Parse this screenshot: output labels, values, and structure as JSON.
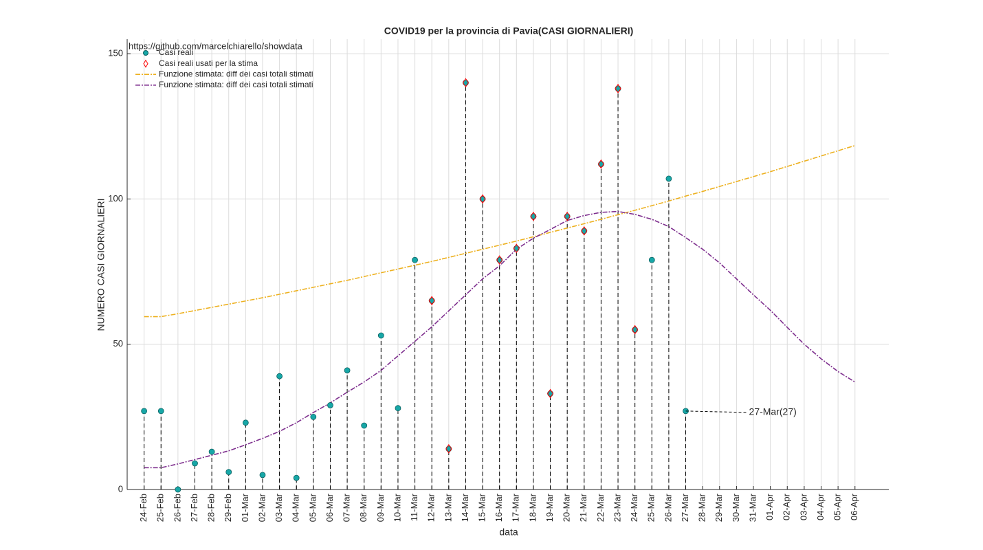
{
  "chart_data": {
    "type": "stem",
    "title": "COVID19 per la provincia di Pavia(CASI GIORNALIERI)",
    "source": "https://github.com/marcelchiarello/showdata",
    "xlabel": "data",
    "ylabel": "NUMERO CASI GIORNALIERI",
    "annotation": "27-Mar(27)",
    "categories": [
      "24-Feb",
      "25-Feb",
      "26-Feb",
      "27-Feb",
      "28-Feb",
      "29-Feb",
      "01-Mar",
      "02-Mar",
      "03-Mar",
      "04-Mar",
      "05-Mar",
      "06-Mar",
      "07-Mar",
      "08-Mar",
      "09-Mar",
      "10-Mar",
      "11-Mar",
      "12-Mar",
      "13-Mar",
      "14-Mar",
      "15-Mar",
      "16-Mar",
      "17-Mar",
      "18-Mar",
      "19-Mar",
      "20-Mar",
      "21-Mar",
      "22-Mar",
      "23-Mar",
      "24-Mar",
      "25-Mar",
      "26-Mar",
      "27-Mar",
      "28-Mar",
      "29-Mar",
      "30-Mar",
      "31-Mar",
      "01-Apr",
      "02-Apr",
      "03-Apr",
      "04-Apr",
      "05-Apr",
      "06-Apr"
    ],
    "series": [
      {
        "name": "Casi reali",
        "color": "#17a7a7",
        "marker": "circle",
        "values": [
          27,
          27,
          0,
          9,
          13,
          6,
          23,
          5,
          39,
          4,
          25,
          29,
          41,
          22,
          53,
          28,
          79,
          65,
          14,
          140,
          100,
          79,
          83,
          94,
          33,
          94,
          89,
          112,
          138,
          55,
          79,
          107,
          27,
          null,
          null,
          null,
          null,
          null,
          null,
          null,
          null,
          null,
          null
        ]
      },
      {
        "name": "Casi reali usati per la stima",
        "color": "#ff0000",
        "marker": "diamond",
        "values": [
          null,
          null,
          null,
          null,
          null,
          null,
          null,
          null,
          null,
          null,
          null,
          null,
          null,
          null,
          null,
          null,
          null,
          65,
          14,
          140,
          100,
          79,
          83,
          94,
          33,
          94,
          89,
          112,
          138,
          55,
          null,
          null,
          null,
          null,
          null,
          null,
          null,
          null,
          null,
          null,
          null,
          null,
          null
        ]
      },
      {
        "name": "Funzione stimata: diff dei casi totali stimati",
        "color": "#edb120",
        "marker": "line",
        "values": [
          59.5,
          59.5,
          60.5,
          61.6,
          62.7,
          63.8,
          64.9,
          66.0,
          67.2,
          68.4,
          69.6,
          70.8,
          72.0,
          73.3,
          74.6,
          75.9,
          77.2,
          78.5,
          79.9,
          81.3,
          82.7,
          84.1,
          85.5,
          87.0,
          88.5,
          90.0,
          91.5,
          93.0,
          94.6,
          96.1,
          97.7,
          99.3,
          101.0,
          102.6,
          104.3,
          106.0,
          107.7,
          109.4,
          111.2,
          113.0,
          114.8,
          116.6,
          118.4
        ]
      },
      {
        "name": "Funzione stimata: diff dei casi totali stimati",
        "color": "#7e2f8e",
        "marker": "line",
        "values": [
          7.5,
          7.5,
          8.8,
          10.3,
          11.8,
          13.3,
          15.4,
          17.6,
          20,
          23,
          26.5,
          29.8,
          33.5,
          37,
          41,
          46,
          51,
          56,
          61.5,
          67,
          72.5,
          77,
          82.7,
          86.5,
          89.5,
          92.6,
          94.3,
          95.4,
          95.7,
          94.7,
          93,
          90.5,
          86.7,
          82.7,
          78,
          72.5,
          67,
          61.7,
          55.8,
          50,
          45,
          40.6,
          37
        ]
      }
    ],
    "ylim": [
      0,
      155
    ],
    "yticks": [
      0,
      50,
      100,
      150
    ],
    "grid": true
  }
}
